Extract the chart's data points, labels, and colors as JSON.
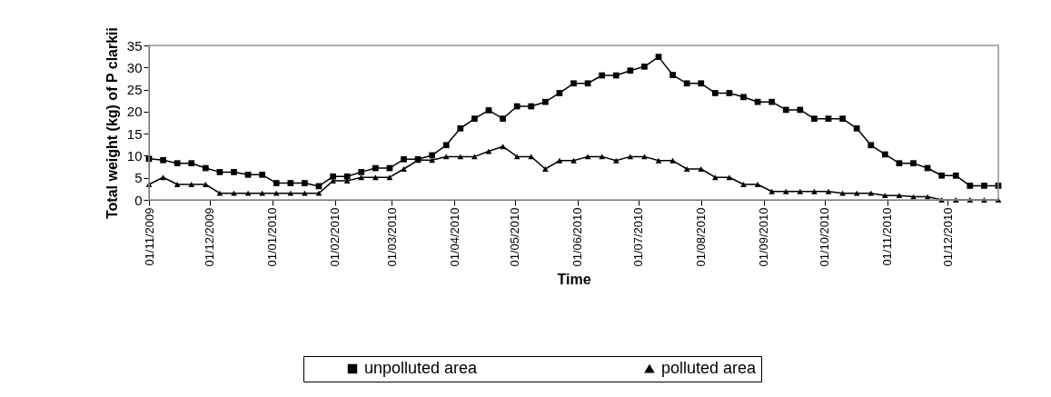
{
  "chart_data": {
    "type": "line",
    "xlabel": "Time",
    "ylabel": "Total weight (kg) of P clarkii",
    "x": [
      "2009-11-01",
      "2009-11-08",
      "2009-11-15",
      "2009-11-22",
      "2009-11-29",
      "2009-12-06",
      "2009-12-13",
      "2009-12-20",
      "2009-12-27",
      "2010-01-03",
      "2010-01-10",
      "2010-01-17",
      "2010-01-24",
      "2010-01-31",
      "2010-02-07",
      "2010-02-14",
      "2010-02-21",
      "2010-02-28",
      "2010-03-07",
      "2010-03-14",
      "2010-03-21",
      "2010-03-28",
      "2010-04-04",
      "2010-04-11",
      "2010-04-18",
      "2010-04-25",
      "2010-05-02",
      "2010-05-09",
      "2010-05-16",
      "2010-05-23",
      "2010-05-30",
      "2010-06-06",
      "2010-06-13",
      "2010-06-20",
      "2010-06-27",
      "2010-07-04",
      "2010-07-11",
      "2010-07-18",
      "2010-07-25",
      "2010-08-01",
      "2010-08-08",
      "2010-08-15",
      "2010-08-22",
      "2010-08-29",
      "2010-09-05",
      "2010-09-12",
      "2010-09-19",
      "2010-09-26",
      "2010-10-03",
      "2010-10-10",
      "2010-10-17",
      "2010-10-24",
      "2010-10-31",
      "2010-11-07",
      "2010-11-14",
      "2010-11-21",
      "2010-11-28",
      "2010-12-05",
      "2010-12-12",
      "2010-12-19",
      "2010-12-26"
    ],
    "series": [
      {
        "name": "unpolluted area",
        "color": "#000000",
        "marker": "square",
        "values": [
          9.3,
          9.0,
          8.3,
          8.3,
          7.2,
          6.3,
          6.3,
          5.7,
          5.7,
          3.8,
          3.8,
          3.8,
          3.1,
          5.3,
          5.3,
          6.3,
          7.2,
          7.2,
          9.2,
          9.2,
          10.1,
          12.4,
          16.2,
          18.4,
          20.3,
          18.4,
          21.2,
          21.2,
          22.2,
          24.2,
          26.4,
          26.4,
          28.2,
          28.2,
          29.3,
          30.2,
          32.4,
          28.3,
          26.4,
          26.4,
          24.2,
          24.2,
          23.3,
          22.2,
          22.2,
          20.4,
          20.4,
          18.4,
          18.4,
          18.4,
          16.2,
          12.4,
          10.3,
          8.3,
          8.3,
          7.2,
          5.5,
          5.5,
          3.2,
          3.2,
          3.2
        ]
      },
      {
        "name": "polluted area",
        "color": "#000000",
        "marker": "triangle",
        "values": [
          3.5,
          5.1,
          3.5,
          3.5,
          3.5,
          1.5,
          1.5,
          1.5,
          1.5,
          1.5,
          1.5,
          1.5,
          1.5,
          4.3,
          4.3,
          5.1,
          5.1,
          5.1,
          7.0,
          9.0,
          9.0,
          9.8,
          9.8,
          9.8,
          11.0,
          12.1,
          9.8,
          9.8,
          7.0,
          8.9,
          8.9,
          9.8,
          9.8,
          8.9,
          9.8,
          9.8,
          8.9,
          8.9,
          7.0,
          7.0,
          5.1,
          5.1,
          3.5,
          3.5,
          1.9,
          1.9,
          1.9,
          1.9,
          1.9,
          1.5,
          1.5,
          1.5,
          1.0,
          1.0,
          0.7,
          0.7,
          0,
          0,
          0,
          0,
          0
        ]
      }
    ],
    "xlim": [
      "2009-11-01",
      "2010-12-26"
    ],
    "xticks": [
      {
        "value": "2009-11-01",
        "label": "01/11/2009"
      },
      {
        "value": "2009-12-01",
        "label": "01/12/2009"
      },
      {
        "value": "2010-01-01",
        "label": "01/01/2010"
      },
      {
        "value": "2010-02-01",
        "label": "01/02/2010"
      },
      {
        "value": "2010-03-01",
        "label": "01/03/2010"
      },
      {
        "value": "2010-04-01",
        "label": "01/04/2010"
      },
      {
        "value": "2010-05-01",
        "label": "01/05/2010"
      },
      {
        "value": "2010-06-01",
        "label": "01/06/2010"
      },
      {
        "value": "2010-07-01",
        "label": "01/07/2010"
      },
      {
        "value": "2010-08-01",
        "label": "01/08/2010"
      },
      {
        "value": "2010-09-01",
        "label": "01/09/2010"
      },
      {
        "value": "2010-10-01",
        "label": "01/10/2010"
      },
      {
        "value": "2010-11-01",
        "label": "01/11/2010"
      },
      {
        "value": "2010-12-01",
        "label": "01/12/2010"
      }
    ],
    "ylim": [
      0,
      35
    ],
    "yticks": [
      0,
      5,
      10,
      15,
      20,
      25,
      30,
      35
    ],
    "grid": false,
    "legend": "bottom",
    "line_style": "solid"
  }
}
